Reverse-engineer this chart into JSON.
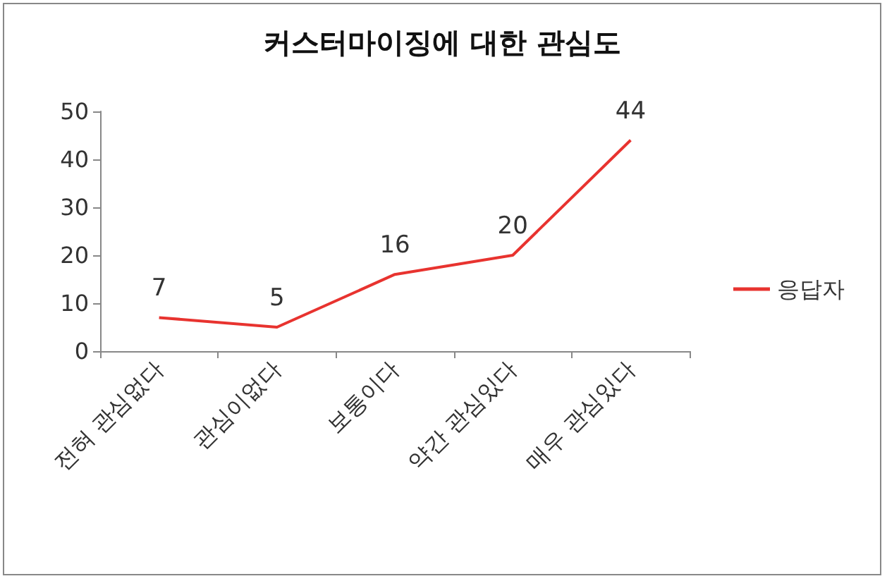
{
  "chart_data": {
    "type": "line",
    "title": "커스터마이징에 대한 관심도",
    "categories": [
      "전혀 관심없다",
      "관심이없다",
      "보통이다",
      "약간 관심있다",
      "매우 관심있다"
    ],
    "series": [
      {
        "name": "응답자",
        "color": "#e8332f",
        "values": [
          7,
          5,
          16,
          20,
          44
        ]
      }
    ],
    "ylim": [
      0,
      50
    ],
    "yticks": [
      0,
      10,
      20,
      30,
      40,
      50
    ],
    "grid": false,
    "legend": "right",
    "marker": "none",
    "data_labels": true
  }
}
